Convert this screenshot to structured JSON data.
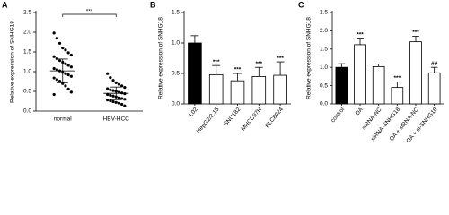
{
  "chart_data": [
    {
      "type": "dot",
      "panel": "A",
      "ylabel": "Relative expression of SNHG18",
      "categories": [
        "normal",
        "HBV-HCC"
      ],
      "groups": [
        {
          "values": [
            1.98,
            1.85,
            1.72,
            1.6,
            1.55,
            1.48,
            1.42,
            1.38,
            1.33,
            1.28,
            1.24,
            1.2,
            1.16,
            1.12,
            1.08,
            1.05,
            1.02,
            0.98,
            0.95,
            0.92,
            0.88,
            0.84,
            0.8,
            0.76,
            0.7,
            0.64,
            0.56,
            0.48,
            0.42
          ],
          "mean": 1.02,
          "sd": 0.3,
          "color": "#000000"
        },
        {
          "values": [
            0.95,
            0.85,
            0.78,
            0.72,
            0.68,
            0.64,
            0.6,
            0.57,
            0.54,
            0.52,
            0.5,
            0.48,
            0.46,
            0.44,
            0.42,
            0.4,
            0.38,
            0.36,
            0.34,
            0.32,
            0.3,
            0.28,
            0.26,
            0.24,
            0.22,
            0.2,
            0.17,
            0.13
          ],
          "mean": 0.45,
          "sd": 0.16,
          "color": "#000000"
        }
      ],
      "annotation": "***",
      "ylim": [
        0,
        2.5
      ],
      "yticks": [
        {
          "value": 0,
          "label": "0.0"
        },
        {
          "value": 0.5,
          "label": "0.5"
        },
        {
          "value": 1,
          "label": "1.0"
        },
        {
          "value": 1.5,
          "label": "1.5"
        },
        {
          "value": 2,
          "label": "2.0"
        },
        {
          "value": 2.5,
          "label": "2.5"
        }
      ]
    },
    {
      "type": "bar",
      "panel": "B",
      "ylabel": "Relative expression of SNHG18",
      "categories": [
        "L02",
        "HepG2/2.15",
        "SNU182",
        "MHCC97H",
        "PLC8024"
      ],
      "values": [
        1.0,
        0.48,
        0.38,
        0.45,
        0.47
      ],
      "errors": [
        0.12,
        0.15,
        0.12,
        0.15,
        0.22
      ],
      "colors": [
        "#000000",
        "#ffffff",
        "#ffffff",
        "#ffffff",
        "#ffffff"
      ],
      "annotations": [
        null,
        "***",
        "***",
        "***",
        "***"
      ],
      "ylim": [
        0,
        1.5
      ],
      "yticks": [
        {
          "value": 0,
          "label": "0.0"
        },
        {
          "value": 0.5,
          "label": "0.5"
        },
        {
          "value": 1,
          "label": "1.0"
        },
        {
          "value": 1.5,
          "label": "1.5"
        }
      ]
    },
    {
      "type": "bar",
      "panel": "C",
      "ylabel": "Relative expression of SNHG18",
      "categories": [
        "control",
        "OA",
        "siRNA-NC",
        "siRNA-SNHG18",
        "OA + siRNA-NC",
        "OA + si-SNHG18"
      ],
      "values": [
        1.0,
        1.62,
        1.02,
        0.45,
        1.7,
        0.85
      ],
      "errors": [
        0.1,
        0.18,
        0.07,
        0.15,
        0.15,
        0.15
      ],
      "colors": [
        "#000000",
        "#ffffff",
        "#ffffff",
        "#ffffff",
        "#ffffff",
        "#ffffff"
      ],
      "annotations": [
        null,
        "***",
        null,
        "***",
        "***",
        "##"
      ],
      "ylim": [
        0,
        2.5
      ],
      "yticks": [
        {
          "value": 0,
          "label": "0.0"
        },
        {
          "value": 0.5,
          "label": "0.5"
        },
        {
          "value": 1,
          "label": "1.0"
        },
        {
          "value": 1.5,
          "label": "1.5"
        },
        {
          "value": 2,
          "label": "2.0"
        },
        {
          "value": 2.5,
          "label": "2.5"
        }
      ]
    }
  ]
}
